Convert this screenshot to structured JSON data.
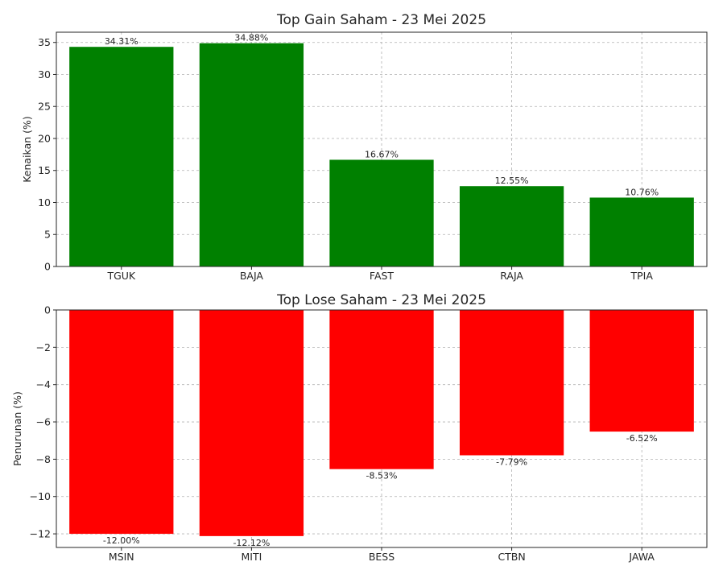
{
  "chart_data": [
    {
      "type": "bar",
      "title": "Top Gain Saham - 23 Mei 2025",
      "xlabel": "",
      "ylabel": "Kenaikan (%)",
      "categories": [
        "TGUK",
        "BAJA",
        "FAST",
        "RAJA",
        "TPIA"
      ],
      "values": [
        34.31,
        34.88,
        16.67,
        12.55,
        10.76
      ],
      "data_labels": [
        "34.31%",
        "34.88%",
        "16.67%",
        "12.55%",
        "10.76%"
      ],
      "yticks": [
        0,
        5,
        10,
        15,
        20,
        25,
        30,
        35
      ],
      "ytick_labels": [
        "0",
        "5",
        "10",
        "15",
        "20",
        "25",
        "30",
        "35"
      ],
      "ylim": [
        0,
        36.6
      ],
      "grid": true,
      "color": "#008000"
    },
    {
      "type": "bar",
      "title": "Top Lose Saham - 23 Mei 2025",
      "xlabel": "",
      "ylabel": "Penurunan (%)",
      "categories": [
        "MSIN",
        "MITI",
        "BESS",
        "CTBN",
        "JAWA"
      ],
      "values": [
        -12.0,
        -12.12,
        -8.53,
        -7.79,
        -6.52
      ],
      "data_labels": [
        "-12.00%",
        "-12.12%",
        "-8.53%",
        "-7.79%",
        "-6.52%"
      ],
      "yticks": [
        0,
        -2,
        -4,
        -6,
        -8,
        -10,
        -12
      ],
      "ytick_labels": [
        "0",
        "−2",
        "−4",
        "−6",
        "−8",
        "−10",
        "−12"
      ],
      "ylim": [
        -12.73,
        0
      ],
      "grid": true,
      "color": "#ff0000"
    }
  ]
}
